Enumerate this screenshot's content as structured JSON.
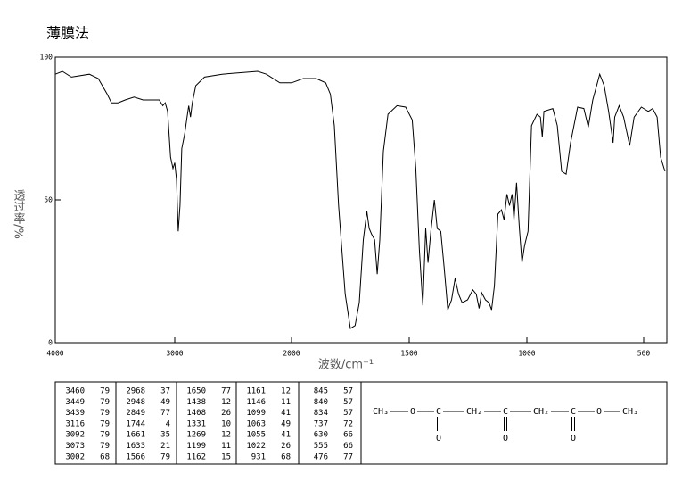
{
  "chart_data": {
    "type": "line",
    "title": "薄膜法",
    "xlabel": "波数/cm⁻¹",
    "ylabel": "透过率/%",
    "color": "#000000",
    "xlim": [
      4000,
      400
    ],
    "ylim": [
      0,
      100
    ],
    "xticks": [
      4000,
      3000,
      2000,
      1500,
      1000,
      500
    ],
    "yticks": [
      0,
      50,
      100
    ],
    "x": [
      4000,
      3940,
      3865,
      3715,
      3640,
      3565,
      3530,
      3475,
      3415,
      3340,
      3265,
      3190,
      3130,
      3100,
      3080,
      3060,
      3035,
      3015,
      3000,
      2985,
      2970,
      2955,
      2940,
      2915,
      2895,
      2880,
      2865,
      2850,
      2820,
      2745,
      2595,
      2290,
      2215,
      2100,
      2000,
      1950,
      1895,
      1855,
      1835,
      1818,
      1800,
      1772,
      1750,
      1730,
      1712,
      1695,
      1680,
      1670,
      1660,
      1647,
      1636,
      1625,
      1610,
      1590,
      1552,
      1515,
      1487,
      1472,
      1457,
      1442,
      1430,
      1420,
      1408,
      1393,
      1381,
      1366,
      1351,
      1336,
      1320,
      1305,
      1290,
      1275,
      1252,
      1230,
      1215,
      1203,
      1192,
      1176,
      1161,
      1150,
      1138,
      1123,
      1108,
      1097,
      1085,
      1074,
      1063,
      1055,
      1044,
      1032,
      1021,
      1010,
      995,
      980,
      957,
      942,
      934,
      927,
      889,
      870,
      851,
      832,
      813,
      783,
      756,
      737,
      718,
      688,
      669,
      650,
      631,
      624,
      605,
      586,
      560,
      541,
      510,
      480,
      461,
      442,
      427,
      408
    ],
    "values": [
      94,
      95,
      93,
      94,
      92.5,
      87,
      84,
      84,
      85,
      86,
      85,
      85,
      85,
      83,
      84,
      81,
      65,
      61,
      63,
      57,
      39,
      48,
      68,
      73,
      79,
      83,
      79,
      84,
      90,
      93,
      94,
      95,
      94,
      91,
      91,
      92.5,
      92.5,
      91,
      87,
      76,
      48,
      17,
      5,
      6,
      14,
      36,
      46,
      40,
      38,
      36,
      24,
      36,
      67,
      80,
      83,
      82.5,
      78,
      61,
      32.5,
      13,
      40,
      28,
      39,
      50,
      40,
      39,
      26,
      11.5,
      15,
      22.5,
      17,
      14,
      15,
      18.5,
      17,
      12,
      17.5,
      15,
      14,
      11.5,
      20,
      45,
      46.5,
      43,
      52,
      48,
      52,
      43,
      56,
      40,
      28,
      34,
      39,
      76,
      80,
      79,
      72,
      81,
      82,
      76,
      60,
      59,
      70,
      82.5,
      82,
      75.5,
      85,
      94,
      90,
      81,
      70,
      79,
      83,
      79,
      69,
      79,
      82.5,
      81,
      82,
      79,
      65,
      60
    ]
  },
  "peak_table": {
    "columns": [
      [
        [
          3460,
          79
        ],
        [
          3449,
          79
        ],
        [
          3439,
          79
        ],
        [
          3116,
          79
        ],
        [
          3092,
          79
        ],
        [
          3073,
          79
        ],
        [
          3002,
          68
        ]
      ],
      [
        [
          2968,
          37
        ],
        [
          2948,
          49
        ],
        [
          2849,
          77
        ],
        [
          1744,
          4
        ],
        [
          1661,
          35
        ],
        [
          1633,
          21
        ],
        [
          1566,
          79
        ]
      ],
      [
        [
          1650,
          77
        ],
        [
          1438,
          12
        ],
        [
          1408,
          26
        ],
        [
          1331,
          10
        ],
        [
          1269,
          12
        ],
        [
          1199,
          11
        ],
        [
          1162,
          15
        ]
      ],
      [
        [
          1161,
          12
        ],
        [
          1146,
          11
        ],
        [
          1099,
          41
        ],
        [
          1063,
          49
        ],
        [
          1055,
          41
        ],
        [
          1022,
          26
        ],
        [
          931,
          68
        ]
      ],
      [
        [
          845,
          57
        ],
        [
          840,
          57
        ],
        [
          834,
          57
        ],
        [
          737,
          72
        ],
        [
          630,
          66
        ],
        [
          555,
          66
        ],
        [
          476,
          77
        ]
      ]
    ]
  },
  "structure": {
    "chain": [
      "CH₃",
      "O",
      "C",
      "CH₂",
      "C",
      "CH₂",
      "C",
      "O",
      "CH₃"
    ],
    "carbonyl_oxygens": [
      "O",
      "O",
      "O"
    ]
  }
}
